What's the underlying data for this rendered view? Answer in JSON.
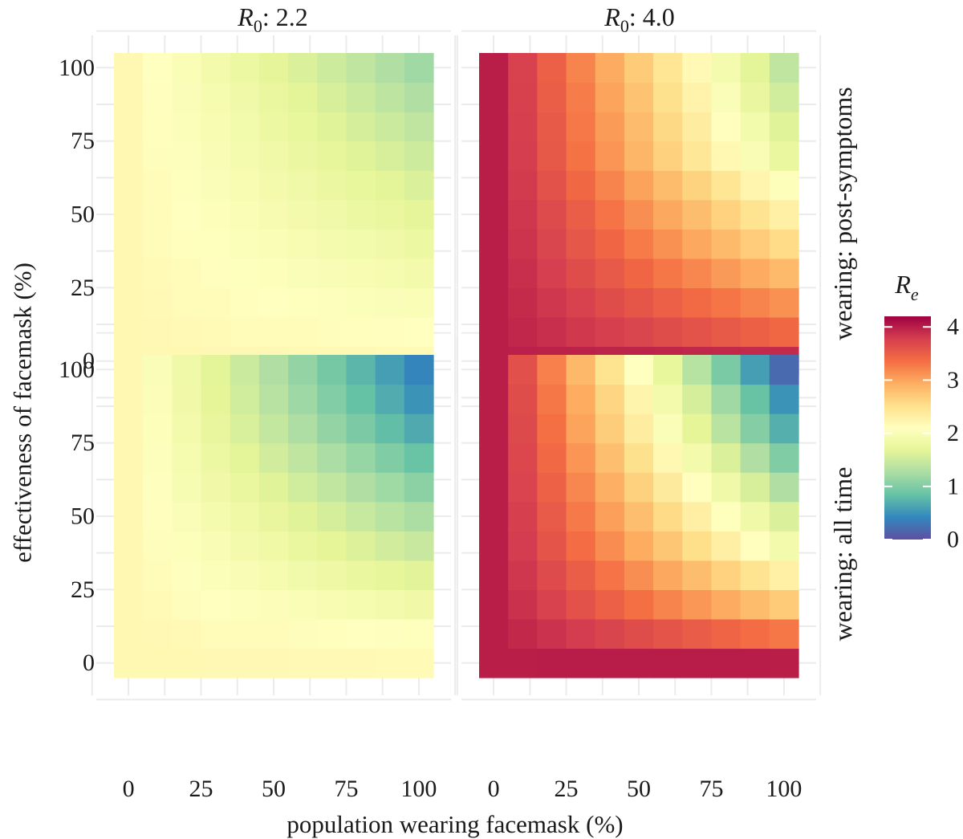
{
  "chart_data": {
    "type": "heatmap",
    "xlabel": "population wearing facemask (%)",
    "ylabel": "effectiveness of facemask (%)",
    "x_ticks": [
      "0",
      "25",
      "50",
      "75",
      "100"
    ],
    "y_ticks": [
      "0",
      "25",
      "50",
      "75",
      "100"
    ],
    "x": [
      0,
      10,
      20,
      30,
      40,
      50,
      60,
      70,
      80,
      90,
      100
    ],
    "y": [
      0,
      10,
      20,
      30,
      40,
      50,
      60,
      70,
      80,
      90,
      100
    ],
    "xlim": [
      -5,
      105
    ],
    "ylim": [
      -5,
      105
    ],
    "column_strips": [
      {
        "symbol": "R",
        "subscript": "0",
        "value": ": 2.2"
      },
      {
        "symbol": "R",
        "subscript": "0",
        "value": ": 4.0"
      }
    ],
    "row_strips": [
      "wearing: post-symptoms",
      "wearing: all time"
    ],
    "legend": {
      "symbol": "R",
      "subscript": "e",
      "range": [
        0,
        4.2
      ],
      "ticks": [
        "0",
        "1",
        "2",
        "3",
        "4"
      ],
      "colors": [
        "#5e4fa2",
        "#3288bd",
        "#66c2a5",
        "#abdda4",
        "#e6f598",
        "#ffffbf",
        "#fee08b",
        "#fdae61",
        "#f46d43",
        "#d53e4f",
        "#9e0142"
      ]
    },
    "note": "Re estimated from colours; rows ordered by y (effectiveness 0..100), columns by x (population 0..100)",
    "panels": [
      {
        "row": "wearing: post-symptoms",
        "R0": 2.2,
        "Re": [
          [
            2.2,
            2.2,
            2.2,
            2.19,
            2.19,
            2.19,
            2.18,
            2.18,
            2.18,
            2.17,
            2.17
          ],
          [
            2.2,
            2.19,
            2.18,
            2.17,
            2.16,
            2.15,
            2.14,
            2.13,
            2.12,
            2.11,
            2.1
          ],
          [
            2.2,
            2.18,
            2.16,
            2.14,
            2.12,
            2.1,
            2.08,
            2.06,
            2.04,
            2.02,
            2.0
          ],
          [
            2.2,
            2.17,
            2.14,
            2.11,
            2.08,
            2.05,
            2.02,
            1.99,
            1.96,
            1.93,
            1.9
          ],
          [
            2.2,
            2.16,
            2.12,
            2.08,
            2.04,
            2.0,
            1.96,
            1.92,
            1.88,
            1.84,
            1.8
          ],
          [
            2.2,
            2.15,
            2.1,
            2.05,
            2.0,
            1.95,
            1.9,
            1.85,
            1.8,
            1.75,
            1.7
          ],
          [
            2.2,
            2.14,
            2.08,
            2.02,
            1.96,
            1.9,
            1.84,
            1.78,
            1.72,
            1.66,
            1.6
          ],
          [
            2.2,
            2.13,
            2.06,
            1.99,
            1.92,
            1.85,
            1.78,
            1.71,
            1.64,
            1.57,
            1.5
          ],
          [
            2.2,
            2.12,
            2.04,
            1.96,
            1.88,
            1.8,
            1.72,
            1.64,
            1.56,
            1.48,
            1.4
          ],
          [
            2.2,
            2.11,
            2.02,
            1.93,
            1.84,
            1.75,
            1.66,
            1.57,
            1.48,
            1.39,
            1.3
          ],
          [
            2.2,
            2.1,
            2.0,
            1.9,
            1.8,
            1.7,
            1.6,
            1.5,
            1.4,
            1.3,
            1.2
          ]
        ]
      },
      {
        "row": "wearing: post-symptoms",
        "R0": 4.0,
        "Re": [
          [
            4.0,
            3.99,
            3.98,
            3.97,
            3.96,
            3.96,
            3.95,
            3.94,
            3.93,
            3.92,
            3.91
          ],
          [
            4.0,
            3.94,
            3.88,
            3.82,
            3.76,
            3.71,
            3.65,
            3.59,
            3.53,
            3.47,
            3.41
          ],
          [
            4.0,
            3.91,
            3.83,
            3.74,
            3.65,
            3.57,
            3.48,
            3.39,
            3.31,
            3.22,
            3.13
          ],
          [
            4.0,
            3.88,
            3.77,
            3.65,
            3.54,
            3.42,
            3.3,
            3.19,
            3.07,
            2.96,
            2.84
          ],
          [
            4.0,
            3.85,
            3.71,
            3.56,
            3.42,
            3.27,
            3.13,
            2.98,
            2.84,
            2.69,
            2.55
          ],
          [
            4.0,
            3.83,
            3.66,
            3.49,
            3.32,
            3.15,
            2.98,
            2.81,
            2.64,
            2.47,
            2.3
          ],
          [
            4.0,
            3.8,
            3.61,
            3.41,
            3.22,
            3.02,
            2.83,
            2.63,
            2.44,
            2.24,
            2.05
          ],
          [
            4.0,
            3.78,
            3.55,
            3.33,
            3.1,
            2.88,
            2.65,
            2.43,
            2.2,
            1.98,
            1.75
          ],
          [
            4.0,
            3.76,
            3.53,
            3.29,
            3.06,
            2.82,
            2.58,
            2.35,
            2.11,
            1.88,
            1.64
          ],
          [
            4.0,
            3.75,
            3.5,
            3.26,
            3.01,
            2.76,
            2.51,
            2.26,
            2.02,
            1.77,
            1.52
          ],
          [
            4.0,
            3.74,
            3.48,
            3.22,
            2.96,
            2.7,
            2.44,
            2.18,
            1.92,
            1.66,
            1.4
          ]
        ]
      },
      {
        "row": "wearing: all time",
        "R0": 2.2,
        "Re": [
          [
            2.2,
            2.2,
            2.2,
            2.19,
            2.19,
            2.19,
            2.18,
            2.18,
            2.18,
            2.17,
            2.17
          ],
          [
            2.2,
            2.19,
            2.18,
            2.16,
            2.15,
            2.14,
            2.13,
            2.12,
            2.1,
            2.09,
            2.08
          ],
          [
            2.2,
            2.17,
            2.13,
            2.1,
            2.06,
            2.03,
            2.0,
            1.96,
            1.93,
            1.89,
            1.86
          ],
          [
            2.2,
            2.15,
            2.09,
            2.04,
            1.98,
            1.93,
            1.87,
            1.82,
            1.76,
            1.71,
            1.65
          ],
          [
            2.2,
            2.13,
            2.05,
            1.98,
            1.9,
            1.83,
            1.76,
            1.68,
            1.61,
            1.53,
            1.46
          ],
          [
            2.2,
            2.11,
            2.01,
            1.92,
            1.83,
            1.73,
            1.64,
            1.55,
            1.45,
            1.36,
            1.27
          ],
          [
            2.2,
            2.09,
            1.97,
            1.86,
            1.75,
            1.64,
            1.52,
            1.41,
            1.3,
            1.19,
            1.07
          ],
          [
            2.2,
            2.07,
            1.93,
            1.8,
            1.66,
            1.53,
            1.4,
            1.26,
            1.13,
            0.99,
            0.86
          ],
          [
            2.2,
            2.05,
            1.89,
            1.74,
            1.58,
            1.43,
            1.28,
            1.12,
            0.97,
            0.81,
            0.66
          ],
          [
            2.2,
            2.03,
            1.86,
            1.69,
            1.52,
            1.35,
            1.18,
            1.01,
            0.84,
            0.67,
            0.5
          ],
          [
            2.2,
            2.02,
            1.84,
            1.66,
            1.48,
            1.3,
            1.12,
            0.94,
            0.76,
            0.58,
            0.4
          ]
        ]
      },
      {
        "row": "wearing: all time",
        "R0": 4.0,
        "Re": [
          [
            4.0,
            4.0,
            4.01,
            4.01,
            4.01,
            4.01,
            4.01,
            4.01,
            4.01,
            4.01,
            4.0
          ],
          [
            4.0,
            3.93,
            3.86,
            3.79,
            3.72,
            3.65,
            3.58,
            3.51,
            3.44,
            3.37,
            3.3
          ],
          [
            4.0,
            3.87,
            3.74,
            3.61,
            3.48,
            3.35,
            3.22,
            3.09,
            2.96,
            2.83,
            2.7
          ],
          [
            4.0,
            3.83,
            3.66,
            3.49,
            3.32,
            3.15,
            2.98,
            2.81,
            2.64,
            2.47,
            2.3
          ],
          [
            4.0,
            3.79,
            3.58,
            3.37,
            3.16,
            2.95,
            2.74,
            2.53,
            2.32,
            2.11,
            1.9
          ],
          [
            4.0,
            3.76,
            3.52,
            3.28,
            3.04,
            2.8,
            2.56,
            2.32,
            2.08,
            1.84,
            1.6
          ],
          [
            4.0,
            3.73,
            3.46,
            3.19,
            2.92,
            2.65,
            2.38,
            2.11,
            1.84,
            1.57,
            1.3
          ],
          [
            4.0,
            3.7,
            3.4,
            3.1,
            2.8,
            2.5,
            2.2,
            1.9,
            1.6,
            1.3,
            1.0
          ],
          [
            4.0,
            3.67,
            3.34,
            3.01,
            2.68,
            2.35,
            2.02,
            1.69,
            1.36,
            1.03,
            0.7
          ],
          [
            4.0,
            3.65,
            3.3,
            2.95,
            2.6,
            2.25,
            1.9,
            1.55,
            1.2,
            0.85,
            0.5
          ],
          [
            4.0,
            3.62,
            3.24,
            2.86,
            2.48,
            2.1,
            1.72,
            1.34,
            0.96,
            0.58,
            0.2
          ]
        ]
      }
    ]
  }
}
